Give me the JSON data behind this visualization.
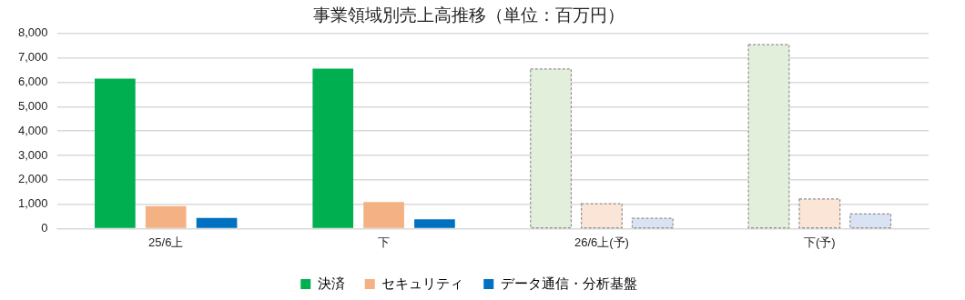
{
  "chart_data": {
    "type": "bar",
    "title": "事業領域別売上高推移（単位：百万円）",
    "categories": [
      "25/6上",
      "下",
      "26/6上(予)",
      "下(予)"
    ],
    "series": [
      {
        "name": "決済",
        "color": "#00b050",
        "colors": [
          "#00b050",
          "#00b050",
          "#e2efda",
          "#e2efda"
        ],
        "values": [
          6150,
          6560,
          6540,
          7540
        ]
      },
      {
        "name": "セキュリティ",
        "color": "#f4b183",
        "colors": [
          "#f4b183",
          "#f4b183",
          "#fbe5d6",
          "#fbe5d6"
        ],
        "values": [
          920,
          1090,
          1020,
          1210
        ]
      },
      {
        "name": "データ通信・分析基盤",
        "color": "#0070c0",
        "colors": [
          "#0070c0",
          "#0070c0",
          "#dae3f3",
          "#dae3f3"
        ],
        "values": [
          430,
          380,
          420,
          600
        ]
      }
    ],
    "ylim": [
      0,
      8000
    ],
    "yticks": [
      0,
      {
        "value": 1000,
        "label": "1,000"
      },
      {
        "value": 2000,
        "label": "2,000"
      },
      {
        "value": 3000,
        "label": "3,000"
      },
      {
        "value": 4000,
        "label": "4,000"
      },
      {
        "value": 5000,
        "label": "5,000"
      },
      {
        "value": 6000,
        "label": "6,000"
      },
      {
        "value": 7000,
        "label": "7,000"
      },
      {
        "value": 8000,
        "label": "8,000"
      }
    ],
    "grid": "y",
    "legend": "bottom"
  }
}
